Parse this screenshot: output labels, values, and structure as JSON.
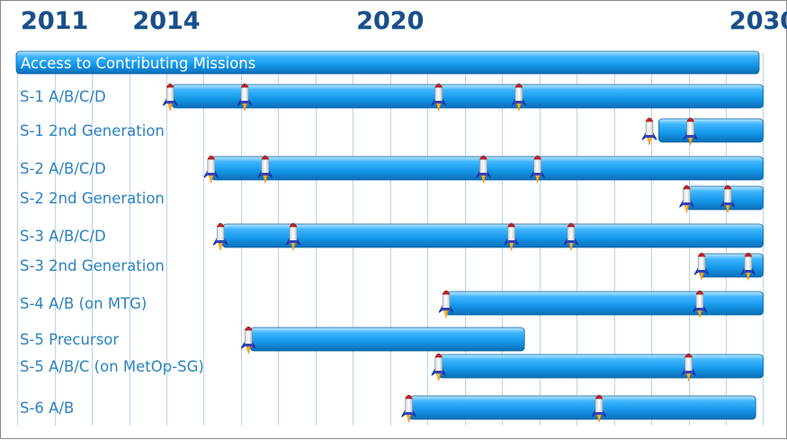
{
  "chart_data": {
    "type": "gantt",
    "x_ticks": [
      2011,
      2014,
      2020,
      2030
    ],
    "x_range": [
      2009.9,
      2030.35
    ],
    "header": "Access to Contributing Missions",
    "rows": [
      {
        "label": "S-1 A/B/C/D",
        "start": 2014.15,
        "end": 2030.0,
        "launches": [
          2014.1,
          2016.1,
          2021.3,
          2023.45
        ]
      },
      {
        "label": "S-1 2nd Generation",
        "start": 2027.2,
        "end": 2030.0,
        "launches": [
          2026.95,
          2028.05
        ]
      },
      {
        "label": "S-2 A/B/C/D",
        "start": 2015.2,
        "end": 2030.0,
        "launches": [
          2015.2,
          2016.65,
          2022.5,
          2023.95
        ]
      },
      {
        "label": "S-2 2nd Generation",
        "start": 2027.95,
        "end": 2030.0,
        "launches": [
          2027.95,
          2029.05
        ]
      },
      {
        "label": "S-3 A/B/C/D",
        "start": 2015.5,
        "end": 2030.0,
        "launches": [
          2015.45,
          2017.4,
          2023.25,
          2024.85
        ]
      },
      {
        "label": "S-3 2nd Generation",
        "start": 2028.3,
        "end": 2030.0,
        "launches": [
          2028.35,
          2029.6
        ]
      },
      {
        "label": "S-4 A/B (on MTG)",
        "start": 2021.5,
        "end": 2030.0,
        "launches": [
          2021.5,
          2028.3
        ]
      },
      {
        "label": "S-5 Precursor",
        "start": 2016.25,
        "end": 2023.6,
        "launches": [
          2016.2
        ]
      },
      {
        "label": "S-5 A/B/C (on MetOp-SG)",
        "start": 2021.3,
        "end": 2030.0,
        "launches": [
          2021.3,
          2028.0
        ]
      },
      {
        "label": "S-6 A/B",
        "start": 2020.5,
        "end": 2029.8,
        "launches": [
          2020.5,
          2025.6
        ]
      }
    ]
  }
}
